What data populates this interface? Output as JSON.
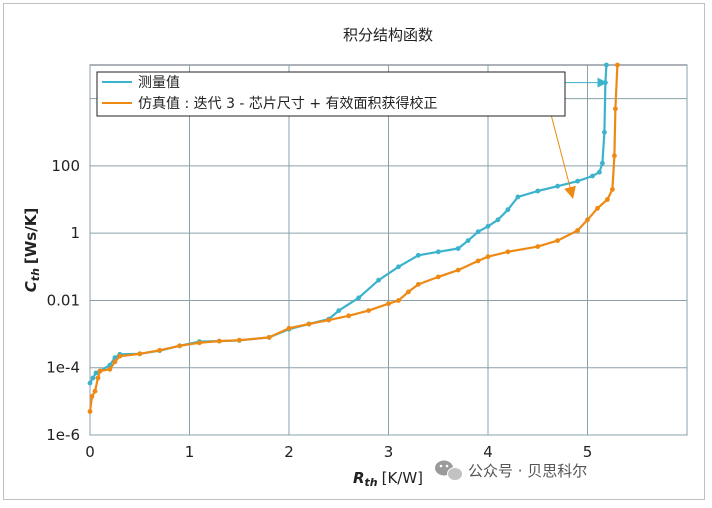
{
  "chart_data": {
    "type": "line",
    "title": "积分结构函数",
    "xlabel": "R",
    "xlabel_sub": "th",
    "xlabel_unit": "[K/W]",
    "ylabel": "C",
    "ylabel_sub": "th",
    "ylabel_unit": "[Ws/K]",
    "y_scale": "log",
    "xlim": [
      0,
      6
    ],
    "ylim": [
      1e-06,
      100000
    ],
    "x_ticks": [
      0,
      1,
      2,
      3,
      4,
      5
    ],
    "y_ticks": [
      {
        "value": 1e-06,
        "label": "1e-6"
      },
      {
        "value": 0.0001,
        "label": "1e-4"
      },
      {
        "value": 0.01,
        "label": "0.01"
      },
      {
        "value": 1,
        "label": "1"
      },
      {
        "value": 100,
        "label": "100"
      },
      {
        "value": 10000,
        "label": ""
      }
    ],
    "x_grid": [
      0,
      1,
      2,
      3,
      4,
      5,
      6
    ],
    "y_grid": [
      1e-06,
      0.0001,
      0.01,
      1,
      100,
      10000
    ],
    "grid": true,
    "legend_position": "top-left",
    "series": [
      {
        "name": "测量值",
        "color": "#3bb3cc",
        "points": [
          [
            0,
            3.5e-05
          ],
          [
            0.03,
            5e-05
          ],
          [
            0.06,
            7e-05
          ],
          [
            0.1,
            8e-05
          ],
          [
            0.2,
            0.00012
          ],
          [
            0.25,
            0.0002
          ],
          [
            0.3,
            0.00025
          ],
          [
            0.5,
            0.00026
          ],
          [
            0.7,
            0.00032
          ],
          [
            0.9,
            0.00045
          ],
          [
            1.1,
            0.0006
          ],
          [
            1.3,
            0.00062
          ],
          [
            1.5,
            0.00065
          ],
          [
            1.8,
            0.0008
          ],
          [
            2.0,
            0.0014
          ],
          [
            2.2,
            0.002
          ],
          [
            2.4,
            0.0028
          ],
          [
            2.5,
            0.005
          ],
          [
            2.7,
            0.012
          ],
          [
            2.9,
            0.04
          ],
          [
            3.1,
            0.1
          ],
          [
            3.3,
            0.22
          ],
          [
            3.5,
            0.28
          ],
          [
            3.7,
            0.35
          ],
          [
            3.8,
            0.6
          ],
          [
            3.9,
            1.1
          ],
          [
            4.0,
            1.6
          ],
          [
            4.1,
            2.5
          ],
          [
            4.2,
            5
          ],
          [
            4.3,
            12
          ],
          [
            4.5,
            18
          ],
          [
            4.7,
            25
          ],
          [
            4.9,
            35
          ],
          [
            5.05,
            50
          ],
          [
            5.12,
            65
          ],
          [
            5.15,
            120
          ],
          [
            5.17,
            1000
          ],
          [
            5.18,
            30000
          ],
          [
            5.19,
            100000
          ]
        ]
      },
      {
        "name": "仿真值 : 迭代 3 - 芯片尺寸 + 有效面积获得校正",
        "color": "#ee8a13",
        "points": [
          [
            0,
            5e-06
          ],
          [
            0.02,
            1.4e-05
          ],
          [
            0.05,
            2e-05
          ],
          [
            0.08,
            5e-05
          ],
          [
            0.1,
            8e-05
          ],
          [
            0.2,
            9e-05
          ],
          [
            0.25,
            0.00015
          ],
          [
            0.3,
            0.00022
          ],
          [
            0.5,
            0.00026
          ],
          [
            0.7,
            0.00033
          ],
          [
            0.9,
            0.00045
          ],
          [
            1.1,
            0.00055
          ],
          [
            1.3,
            0.00062
          ],
          [
            1.5,
            0.00066
          ],
          [
            1.8,
            0.0008
          ],
          [
            2.0,
            0.0015
          ],
          [
            2.2,
            0.002
          ],
          [
            2.4,
            0.0026
          ],
          [
            2.6,
            0.0035
          ],
          [
            2.8,
            0.005
          ],
          [
            3.0,
            0.008
          ],
          [
            3.1,
            0.01
          ],
          [
            3.2,
            0.018
          ],
          [
            3.3,
            0.03
          ],
          [
            3.5,
            0.05
          ],
          [
            3.7,
            0.08
          ],
          [
            3.9,
            0.15
          ],
          [
            4.0,
            0.2
          ],
          [
            4.2,
            0.28
          ],
          [
            4.5,
            0.4
          ],
          [
            4.7,
            0.6
          ],
          [
            4.9,
            1.2
          ],
          [
            5.0,
            2.5
          ],
          [
            5.1,
            5.5
          ],
          [
            5.2,
            10
          ],
          [
            5.25,
            20
          ],
          [
            5.27,
            200
          ],
          [
            5.28,
            5000
          ],
          [
            5.3,
            100000
          ]
        ]
      }
    ],
    "annotations": [
      {
        "type": "arrow",
        "color": "#3bb3cc",
        "from": [
          1.6,
          30000
        ],
        "to": [
          5.18,
          30000
        ]
      },
      {
        "type": "arrow",
        "color": "#ee8a13",
        "from": [
          4.6,
          8000
        ],
        "to": [
          4.85,
          12
        ]
      }
    ]
  },
  "watermark": {
    "text": "公众号 · 贝思科尔",
    "icon": "wechat-icon"
  }
}
